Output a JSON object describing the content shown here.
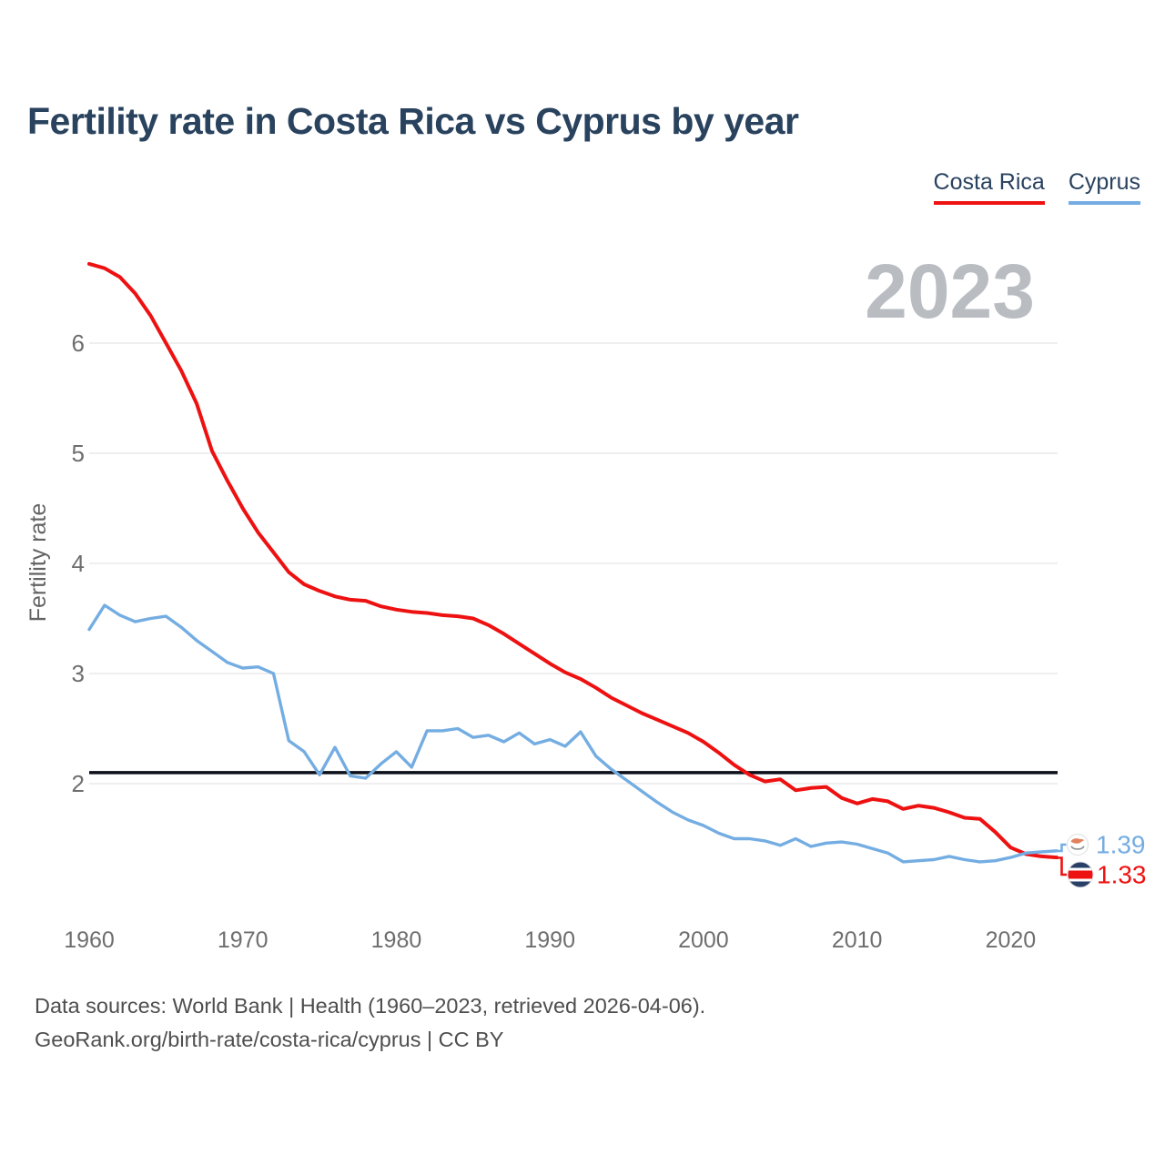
{
  "title": "Fertility rate in Costa Rica vs Cyprus by year",
  "watermark": "2023",
  "legend": {
    "items": [
      {
        "label": "Costa Rica",
        "color": "#ee1111"
      },
      {
        "label": "Cyprus",
        "color": "#74ade2"
      }
    ]
  },
  "icons": {
    "costa_rica": "costa-rica-flag-icon",
    "cyprus": "cyprus-flag-icon"
  },
  "colors": {
    "costa_rica": "#ee1111",
    "cyprus": "#74ade2",
    "reference_line": "#0b0f19",
    "title_text": "#29425e",
    "watermark": "#b9bdc2"
  },
  "footer": {
    "line1": "Data sources: World Bank | Health (1960–2023, retrieved 2026-04-06).",
    "line2": "GeoRank.org/birth-rate/costa-rica/cyprus | CC BY"
  },
  "chart_data": {
    "type": "line",
    "title": "Fertility rate in Costa Rica vs Cyprus by year",
    "xlabel": "",
    "ylabel": "Fertility rate",
    "xlim": [
      1960,
      2023
    ],
    "ylim": [
      1.2,
      6.9
    ],
    "x_ticks": [
      1960,
      1970,
      1980,
      1990,
      2000,
      2010,
      2020
    ],
    "y_ticks": [
      2,
      3,
      4,
      5,
      6
    ],
    "grid": true,
    "legend_position": "top-right",
    "reference_line": {
      "value": 2.1
    },
    "series": [
      {
        "name": "Costa Rica",
        "color": "#ee1111",
        "end_label": "1.33",
        "values": [
          6.72,
          6.68,
          6.6,
          6.45,
          6.25,
          6.0,
          5.75,
          5.45,
          5.02,
          4.75,
          4.5,
          4.28,
          4.1,
          3.92,
          3.81,
          3.75,
          3.7,
          3.67,
          3.66,
          3.61,
          3.58,
          3.56,
          3.55,
          3.53,
          3.52,
          3.5,
          3.44,
          3.36,
          3.27,
          3.18,
          3.09,
          3.01,
          2.95,
          2.87,
          2.78,
          2.71,
          2.64,
          2.58,
          2.52,
          2.46,
          2.38,
          2.28,
          2.17,
          2.08,
          2.02,
          2.04,
          1.94,
          1.96,
          1.97,
          1.87,
          1.82,
          1.86,
          1.84,
          1.77,
          1.8,
          1.78,
          1.74,
          1.69,
          1.68,
          1.56,
          1.42,
          1.36,
          1.34,
          1.33
        ]
      },
      {
        "name": "Cyprus",
        "color": "#74ade2",
        "end_label": "1.39",
        "values": [
          3.4,
          3.62,
          3.53,
          3.47,
          3.5,
          3.52,
          3.42,
          3.3,
          3.2,
          3.1,
          3.05,
          3.06,
          3.0,
          2.39,
          2.29,
          2.08,
          2.33,
          2.07,
          2.05,
          2.18,
          2.29,
          2.15,
          2.48,
          2.48,
          2.5,
          2.42,
          2.44,
          2.38,
          2.46,
          2.36,
          2.4,
          2.34,
          2.47,
          2.25,
          2.13,
          2.03,
          1.93,
          1.83,
          1.74,
          1.67,
          1.62,
          1.55,
          1.5,
          1.5,
          1.48,
          1.44,
          1.5,
          1.43,
          1.46,
          1.47,
          1.45,
          1.41,
          1.37,
          1.29,
          1.3,
          1.31,
          1.34,
          1.31,
          1.29,
          1.3,
          1.33,
          1.37,
          1.38,
          1.39
        ]
      }
    ]
  }
}
